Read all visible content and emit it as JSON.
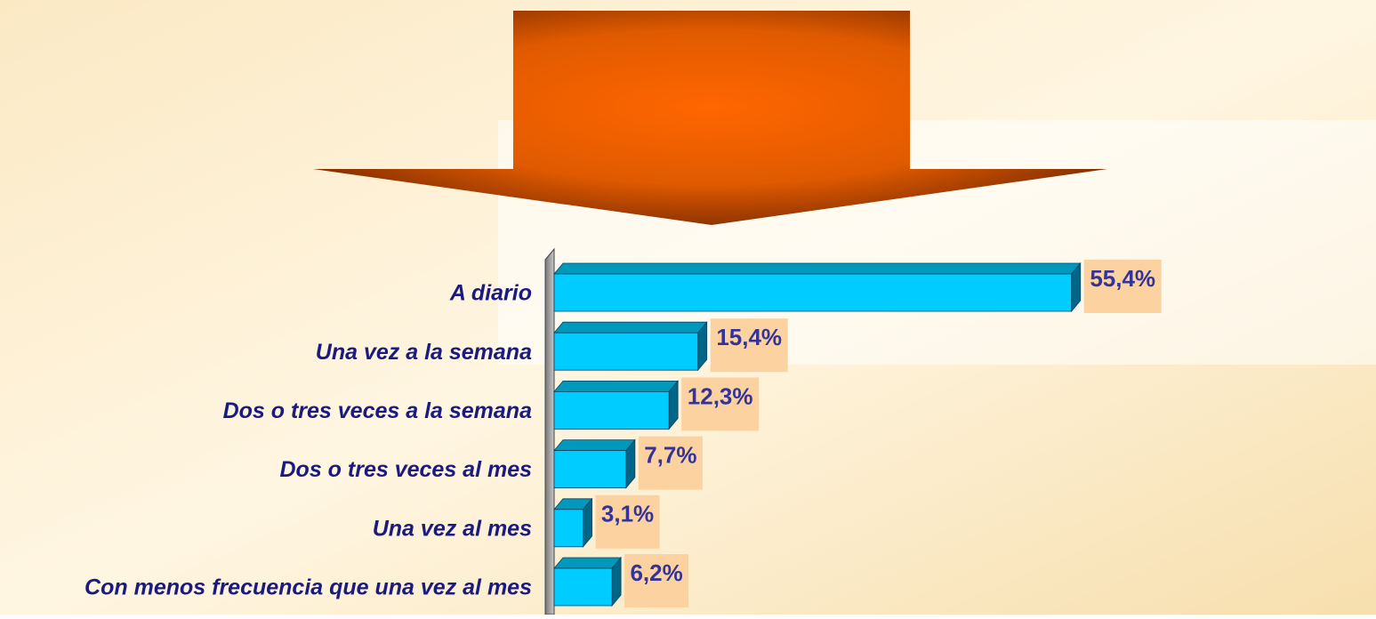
{
  "chart_data": {
    "type": "bar",
    "orientation": "horizontal",
    "categories": [
      "A diario",
      "Una vez a la semana",
      "Dos o tres veces a la semana",
      "Dos o tres veces al mes",
      "Una vez al mes",
      "Con menos frecuencia que una vez al mes"
    ],
    "values": [
      55.4,
      15.4,
      12.3,
      7.7,
      3.1,
      6.2
    ],
    "value_labels": [
      "55,4%",
      "15,4%",
      "12,3%",
      "7,7%",
      "3,1%",
      "6,2%"
    ],
    "color": "#00ccff",
    "xlim": [
      0,
      60
    ]
  }
}
